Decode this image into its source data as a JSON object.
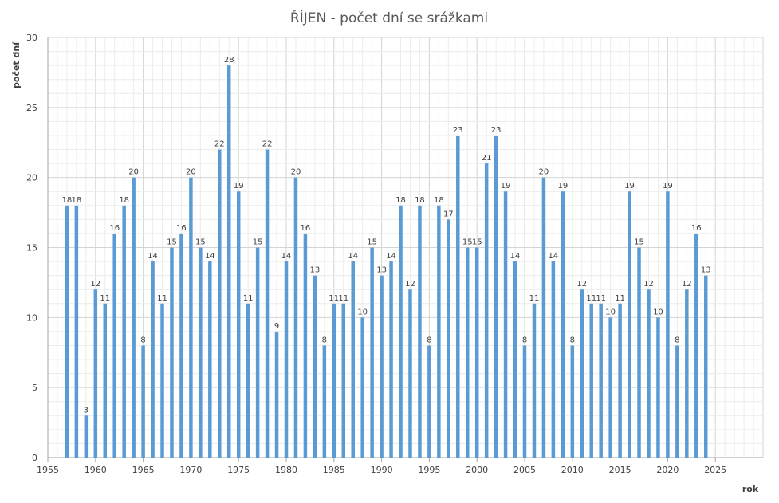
{
  "chart_data": {
    "type": "bar",
    "title": "ŘÍJEN - počet dní se srážkami",
    "xlabel": "rok",
    "ylabel": "počet dní",
    "xlim": [
      1955,
      2030
    ],
    "ylim": [
      0,
      30
    ],
    "x_ticks": [
      1955,
      1960,
      1965,
      1970,
      1975,
      1980,
      1985,
      1990,
      1995,
      2000,
      2005,
      2010,
      2015,
      2020,
      2025
    ],
    "y_ticks": [
      0,
      5,
      10,
      15,
      20,
      25,
      30
    ],
    "grid": true,
    "bar_color": "#5B9BD5",
    "x": [
      1957,
      1958,
      1959,
      1960,
      1961,
      1962,
      1963,
      1964,
      1965,
      1966,
      1967,
      1968,
      1969,
      1970,
      1971,
      1972,
      1973,
      1974,
      1975,
      1976,
      1977,
      1978,
      1979,
      1980,
      1981,
      1982,
      1983,
      1984,
      1985,
      1986,
      1987,
      1988,
      1989,
      1990,
      1991,
      1992,
      1993,
      1994,
      1995,
      1996,
      1997,
      1998,
      1999,
      2000,
      2001,
      2002,
      2003,
      2004,
      2005,
      2006,
      2007,
      2008,
      2009,
      2010,
      2011,
      2012,
      2013,
      2014,
      2015,
      2016,
      2017,
      2018,
      2019,
      2020,
      2021,
      2022,
      2023,
      2024
    ],
    "values": [
      18,
      18,
      3,
      12,
      11,
      16,
      18,
      20,
      8,
      14,
      11,
      15,
      16,
      20,
      15,
      14,
      22,
      28,
      19,
      11,
      15,
      22,
      9,
      14,
      20,
      16,
      13,
      8,
      11,
      11,
      14,
      10,
      15,
      13,
      14,
      18,
      12,
      18,
      8,
      18,
      17,
      23,
      15,
      15,
      21,
      23,
      19,
      14,
      8,
      11,
      20,
      14,
      19,
      8,
      12,
      11,
      11,
      10,
      11,
      19,
      15,
      12,
      10,
      19,
      8,
      12,
      16,
      13
    ],
    "data_labels": [
      "18",
      "18",
      "3",
      "12",
      "11",
      "16",
      "18",
      "20",
      "8",
      "14",
      "11",
      "15",
      "16",
      "20",
      "15",
      "14",
      "22",
      "28",
      "19",
      "11",
      "15",
      "22",
      "9",
      "14",
      "20",
      "16",
      "13",
      "8",
      "11",
      "11",
      "14",
      "10",
      "15",
      "13",
      "14",
      "18",
      "12",
      "18",
      "8",
      "18",
      "17",
      "23",
      "15",
      "15",
      "21",
      "23",
      "19",
      "14",
      "8",
      "11",
      "20",
      "14",
      "19",
      "8",
      "12",
      "11",
      "11",
      "10",
      "11",
      "19",
      "15",
      "12",
      "10",
      "19",
      "8",
      "12",
      "16",
      "13"
    ]
  }
}
